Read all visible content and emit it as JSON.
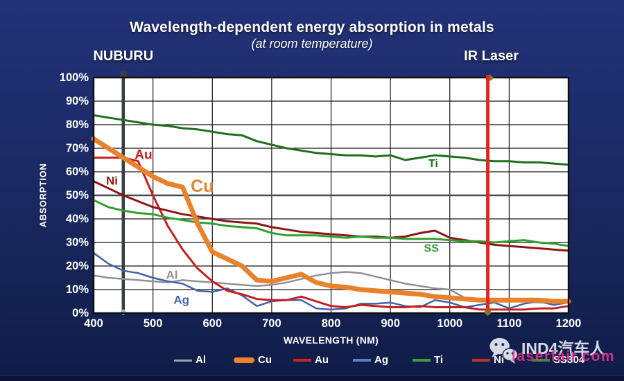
{
  "header": {
    "title": "Wavelength-dependent energy absorption in metals",
    "subtitle": "(at room temperature)"
  },
  "watermark": {
    "brand": "IND4汽车人",
    "site": "laserfair.com",
    "icon": "wechat-icon"
  },
  "legend": {
    "items": [
      {
        "label": "Al",
        "color": "#9aa0a6",
        "style": "thin"
      },
      {
        "label": "Cu",
        "color": "#ee8327",
        "style": "thick"
      },
      {
        "label": "Au",
        "color": "#cc2424",
        "style": "normal"
      },
      {
        "label": "Ag",
        "color": "#5b7fc0",
        "style": "normal"
      },
      {
        "label": "Ti",
        "color": "#3f9f3c",
        "style": "normal"
      },
      {
        "label": "Ni",
        "color": "#c13128",
        "style": "normal"
      },
      {
        "label": "SS304",
        "color": "#2f8f2f",
        "style": "normal"
      }
    ]
  },
  "chart_data": {
    "type": "line",
    "title": "Wavelength-dependent energy absorption in metals",
    "subtitle": "(at room temperature)",
    "xlabel": "WAVELENGTH (NM)",
    "ylabel": "ABSORPTION",
    "xlim": [
      400,
      1200
    ],
    "ylim": [
      0,
      100
    ],
    "grid": true,
    "x_tick_labels": [
      "400",
      "500",
      "600",
      "700",
      "800",
      "900",
      "1000",
      "1100",
      "1200"
    ],
    "y_tick_labels": [
      "100%",
      "90%",
      "80%",
      "70%",
      "60%",
      "50%",
      "40%",
      "30%",
      "20%",
      "10%",
      "0%"
    ],
    "markers": [
      {
        "label": "NUBURU",
        "x": 450,
        "color": "#3a3e44",
        "unit": "nm"
      },
      {
        "label": "IR Laser",
        "x": 1064,
        "color": "#e3251f",
        "unit": "nm"
      }
    ],
    "x": [
      400,
      425,
      450,
      475,
      500,
      525,
      550,
      575,
      600,
      625,
      650,
      675,
      700,
      725,
      750,
      775,
      800,
      825,
      850,
      875,
      900,
      925,
      950,
      975,
      1000,
      1025,
      1050,
      1075,
      1100,
      1125,
      1150,
      1175,
      1200
    ],
    "series": [
      {
        "name": "Al",
        "color": "#8f9196",
        "width": 2.5,
        "label": {
          "text": "Al",
          "x": 532,
          "y": 14.5
        },
        "values": [
          16,
          15,
          14.5,
          14,
          13.5,
          13,
          14,
          13.5,
          13,
          12.5,
          12,
          11.5,
          12,
          13,
          14.5,
          16,
          17,
          17.5,
          17,
          15.5,
          14,
          12.5,
          11.5,
          10.5,
          10,
          6.5,
          5.5,
          5,
          5,
          5,
          4.5,
          4.5,
          4.5
        ]
      },
      {
        "name": "Ag",
        "color": "#3f64ad",
        "width": 2.5,
        "label": {
          "text": "Ag",
          "x": 548,
          "y": 4
        },
        "values": [
          25.5,
          21,
          18,
          17,
          15,
          13.5,
          12.5,
          9.5,
          9,
          10.5,
          7.5,
          3,
          5,
          5.5,
          5.5,
          2,
          1.5,
          2,
          4,
          4,
          4.5,
          3,
          2.5,
          5.5,
          4.5,
          2.5,
          3.5,
          4.5,
          2,
          4,
          5,
          3.5,
          4.5
        ]
      },
      {
        "name": "Au",
        "color": "#c81f1f",
        "width": 3,
        "label": {
          "text": "Au",
          "x": 484,
          "y": 65.5
        },
        "values": [
          66,
          66,
          66,
          64.5,
          50,
          37,
          27,
          19,
          13.5,
          9.5,
          8,
          6,
          5.5,
          5.5,
          7,
          5,
          3,
          2.5,
          3.5,
          3,
          2.5,
          2.5,
          3,
          2.5,
          2.5,
          2.5,
          1.5,
          1.5,
          1.5,
          1.5,
          2,
          2,
          3
        ]
      },
      {
        "name": "Ni",
        "color": "#8e1616",
        "width": 3,
        "label": {
          "text": "Ni",
          "x": 431,
          "y": 54.5
        },
        "values": [
          56,
          53,
          50,
          47.5,
          45,
          43.5,
          42,
          41,
          40,
          39,
          38.5,
          38,
          36.5,
          35.5,
          34.5,
          34,
          33.5,
          33,
          32.5,
          32.5,
          32,
          32.5,
          34,
          35,
          32,
          31,
          30,
          29,
          28.5,
          28,
          27.5,
          27,
          26.5
        ]
      },
      {
        "name": "SS",
        "color": "#2fa12f",
        "width": 3,
        "label": {
          "text": "SS",
          "x": 969,
          "y": 26
        },
        "values": [
          48,
          45,
          43.5,
          42.5,
          42,
          40.5,
          39.5,
          38.5,
          38,
          37,
          36.5,
          36,
          34,
          33,
          33,
          33,
          32.5,
          32,
          32.5,
          32,
          32,
          31.5,
          31.5,
          31.5,
          31,
          30.5,
          30.5,
          30,
          30.5,
          31,
          30,
          29.5,
          28.5
        ]
      },
      {
        "name": "Ti",
        "color": "#1e6f1e",
        "width": 3,
        "label": {
          "text": "Ti",
          "x": 972,
          "y": 62
        },
        "values": [
          84,
          83,
          82,
          81,
          80,
          79.5,
          78.5,
          78,
          77,
          76,
          75.5,
          73,
          71.5,
          70,
          69,
          68,
          67.5,
          67,
          67,
          66.5,
          67,
          65,
          66,
          67,
          66.5,
          66,
          65,
          64.5,
          64.5,
          64,
          64,
          63.5,
          63
        ]
      },
      {
        "name": "Cu",
        "color": "#e8832c",
        "width": 7,
        "label": {
          "text": "Cu",
          "x": 583,
          "y": 51.5
        },
        "values": [
          74,
          70,
          66,
          62,
          58,
          55,
          53.5,
          38,
          26,
          23,
          20,
          14,
          13.5,
          15,
          16.5,
          13,
          11.5,
          11,
          10,
          9.5,
          9,
          8.5,
          8,
          7,
          6.5,
          6,
          5.5,
          5.5,
          5.5,
          5.5,
          5.5,
          5,
          5
        ]
      }
    ]
  }
}
